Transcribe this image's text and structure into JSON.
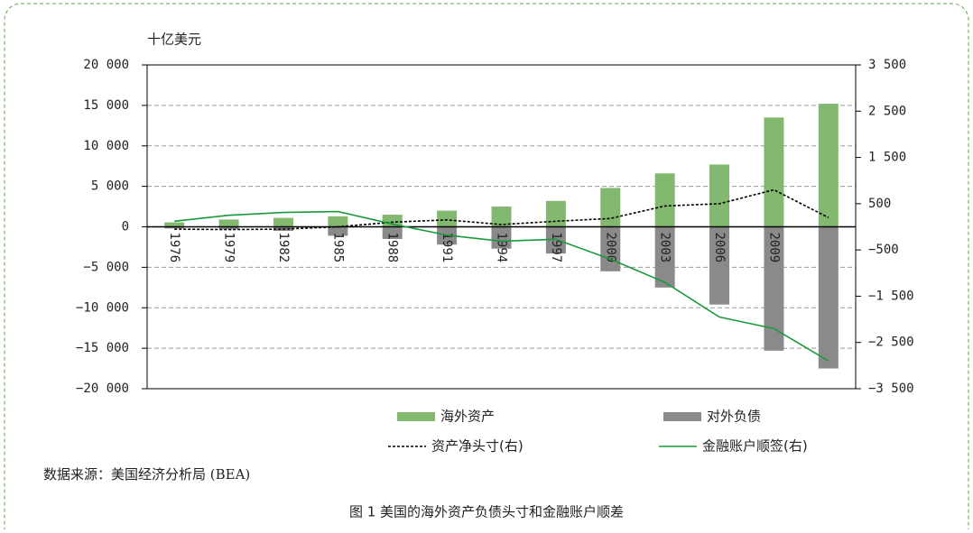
{
  "chart_data": {
    "type": "bar",
    "y_label": "十亿美元",
    "categories": [
      "1976",
      "1979",
      "1982",
      "1985",
      "1988",
      "1991",
      "1994",
      "1997",
      "2000",
      "2003",
      "2006",
      "2009",
      null
    ],
    "series": [
      {
        "name": "海外资产",
        "type": "bar",
        "color": "#82b870",
        "values": [
          550,
          900,
          1100,
          1300,
          1500,
          2000,
          2500,
          3200,
          4800,
          6600,
          7700,
          13500,
          15200
        ]
      },
      {
        "name": "对外负债",
        "type": "bar",
        "color": "#8a8a8a",
        "values": [
          -200,
          -300,
          -500,
          -1100,
          -1500,
          -2200,
          -2700,
          -3300,
          -5500,
          -7500,
          -9600,
          -15300,
          -17500
        ]
      },
      {
        "name": "资产净头寸(右)",
        "type": "line",
        "axis": "y2",
        "dash": true,
        "color": "#000000",
        "values": [
          -50,
          -60,
          -50,
          0,
          100,
          150,
          50,
          120,
          180,
          450,
          500,
          800,
          200
        ]
      },
      {
        "name": "金融账户顺签(右)",
        "type": "line",
        "axis": "y2",
        "color": "#1a9a3a",
        "values": [
          120,
          250,
          310,
          330,
          60,
          -180,
          -310,
          -270,
          -700,
          -1200,
          -1950,
          -2200,
          -2900
        ]
      }
    ],
    "ylim": [
      -20000,
      20000
    ],
    "yticks": [
      {
        "value": -20000,
        "label": "−20 000"
      },
      {
        "value": -15000,
        "label": "−15 000"
      },
      {
        "value": -10000,
        "label": "−10 000"
      },
      {
        "value": -5000,
        "label": "−5 000"
      },
      0,
      {
        "value": 5000,
        "label": "5 000"
      },
      {
        "value": 10000,
        "label": "10 000"
      },
      {
        "value": 15000,
        "label": "15 000"
      },
      {
        "value": 20000,
        "label": "20 000"
      }
    ],
    "y2lim": [
      -3500,
      3500
    ],
    "y2ticks": [
      {
        "value": -3500,
        "label": "−3 500"
      },
      {
        "value": -2500,
        "label": "−2 500"
      },
      {
        "value": -1500,
        "label": "−1 500"
      },
      {
        "value": -500,
        "label": "−500"
      },
      500,
      {
        "value": 1500,
        "label": "1 500"
      },
      {
        "value": 2500,
        "label": "2 500"
      },
      {
        "value": 3500,
        "label": "3 500"
      }
    ],
    "grid": true,
    "source": "数据来源：美国经济分析局 (BEA)",
    "caption": "图 1 美国的海外资产负债头寸和金融账户顺差"
  }
}
